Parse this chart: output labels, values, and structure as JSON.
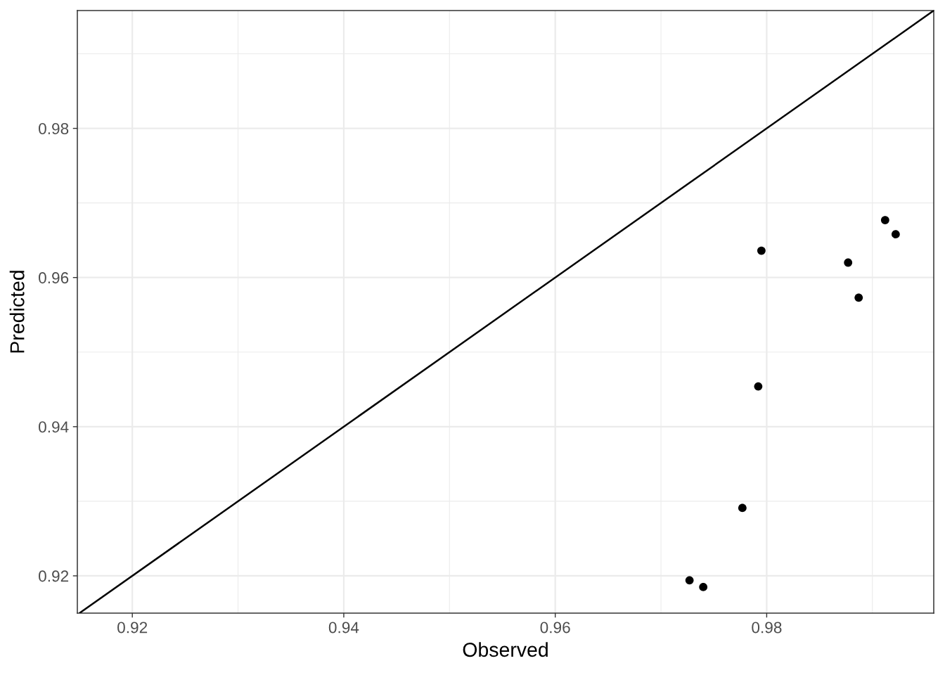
{
  "chart_data": {
    "type": "scatter",
    "xlabel": "Observed",
    "ylabel": "Predicted",
    "xlim": [
      0.9148,
      0.9958
    ],
    "ylim": [
      0.915,
      0.9958
    ],
    "xticks": [
      0.92,
      0.94,
      0.96,
      0.98
    ],
    "yticks": [
      0.92,
      0.94,
      0.96,
      0.98
    ],
    "grid": true,
    "series": [
      {
        "color": "#000000",
        "marker": "circle",
        "x": [
          0.9727,
          0.974,
          0.9777,
          0.9792,
          0.9795,
          0.9877,
          0.9887,
          0.9912,
          0.9922
        ],
        "values": [
          0.9194,
          0.9185,
          0.9291,
          0.9454,
          0.9636,
          0.962,
          0.9573,
          0.9677,
          0.9658
        ]
      },
      {
        "type": "line",
        "color": "#000000",
        "line_style": "solid",
        "x": [
          0.915,
          0.9958
        ],
        "values": [
          0.915,
          0.9958
        ]
      }
    ]
  }
}
